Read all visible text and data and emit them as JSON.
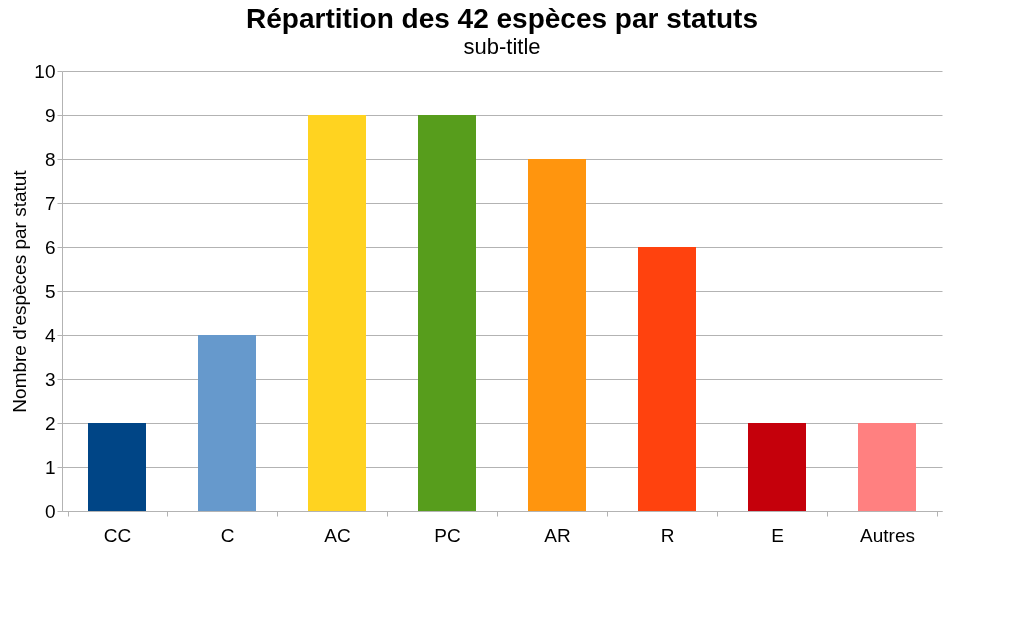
{
  "chart_data": {
    "type": "bar",
    "title": "Répartition des 42 espèces par statuts",
    "subtitle": "sub-title",
    "ylabel": "Nombre d'espèces par statut",
    "categories": [
      "CC",
      "C",
      "AC",
      "PC",
      "AR",
      "R",
      "E",
      "Autres"
    ],
    "values": [
      2,
      4,
      9,
      9,
      8,
      6,
      2,
      2
    ],
    "colors": [
      "#004586",
      "#6699cc",
      "#ffd320",
      "#579d1c",
      "#ff950e",
      "#ff420e",
      "#c5000b",
      "#ff8080"
    ],
    "ylim": [
      0,
      10
    ],
    "yticks": [
      0,
      1,
      2,
      3,
      4,
      5,
      6,
      7,
      8,
      9,
      10
    ],
    "grid": "y"
  }
}
